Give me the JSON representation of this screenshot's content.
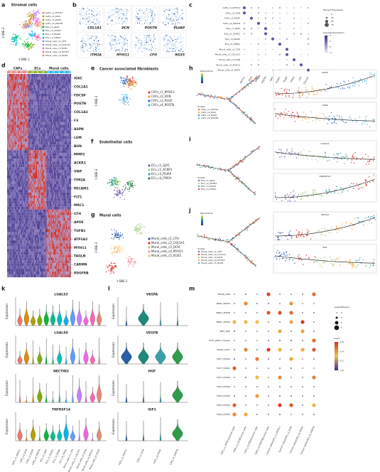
{
  "panels": {
    "a": {
      "letter": "a",
      "title": "Stromal cells",
      "x_label": "t-SNE-1",
      "y_label": "t-SNE-2",
      "legend": [
        "CAFs_c1_MYH11",
        "CAFs_c2_DCN",
        "CAFs_c3_RGS5",
        "CAFs_c4_POSTN",
        "ECs_c1_GJA5",
        "ECs_c2_ACKR1",
        "ECs_c3_PLVAP",
        "ECs_c4_ITM2A",
        "Mural_cells_c1_CFH",
        "Mural_cells_c2_COL1A1",
        "Mural_cells_c3_DCN",
        "Mural_cells_c4_MYH11",
        "Mural_cells_c5_RGS5"
      ],
      "colors": [
        "#f2766d",
        "#de8c00",
        "#b79f00",
        "#7cae00",
        "#00ba38",
        "#00c08b",
        "#00bfc4",
        "#00b4f0",
        "#619cff",
        "#c77cff",
        "#f564e3",
        "#ff64b0",
        "#e58a7a"
      ]
    },
    "b": {
      "letter": "b",
      "genes": [
        "COL1A1",
        "DCN",
        "POSTN",
        "PLVAP",
        "ITM2A",
        "MYH11",
        "CFH",
        "RGS5"
      ]
    },
    "c": {
      "letter": "c",
      "clusters": [
        "CAFs_c1_MYH11",
        "CAFs_c2_DCN",
        "CAFs_c3_RGS5",
        "CAFs_c4_POSTN",
        "ECs_c1_GJA5",
        "ECs_c2_ACKR1",
        "ECs_c3_PLVAP",
        "ECs_c4_ITM2A",
        "Mural_cells_c1_CFH",
        "Mural_cells_c2_COL1A1",
        "Mural_cells_c3_DCN",
        "Mural_cells_c4_MYH11",
        "Mural_cells_c5_RGS5"
      ],
      "genes": [
        "MYH11",
        "DCN",
        "RGS5",
        "POSTN",
        "GJA5",
        "ACKR1",
        "PLVAP",
        "ITM2A",
        "CFH",
        "COL1A1"
      ],
      "size_title": "Percent Expressed",
      "size_ticks": [
        0,
        25,
        50,
        75
      ],
      "color_title": "Average Expression",
      "color_ticks": [
        2,
        1,
        0,
        -1
      ]
    },
    "d": {
      "letter": "d",
      "groups": [
        "CAFs",
        "ECs",
        "Mural cells"
      ],
      "genes": [
        "IGKC",
        "COL1A1",
        "FDCSP",
        "POSTN",
        "COL1A2",
        "F3",
        "ASPN",
        "LUM",
        "BGN",
        "MMP2",
        "ACKR1",
        "VWF",
        "ITM2A",
        "PECAM1",
        "FLT1",
        "MRC1",
        "CFH",
        "APOE",
        "TGFB1",
        "ATP1A2",
        "MYH11",
        "TAGLN",
        "CARMN",
        "PDGFRB"
      ]
    },
    "e": {
      "letter": "e",
      "title": "Cancer associated fibroblasts",
      "y_label": "t-SNE-2",
      "legend": [
        "CAFs_c1_MYH11",
        "CAFs_c2_DCN",
        "CAFs_c3_RGS5",
        "CAFs_c4_POSTN"
      ],
      "colors": [
        "#e8453c",
        "#f0a030",
        "#3a78c2",
        "#4fb3d9"
      ]
    },
    "f": {
      "letter": "f",
      "title": "Endothelial cells",
      "y_label": "t-SNE-2",
      "legend": [
        "ECs_c1_GJA5",
        "ECs_c2_ACKR1",
        "ECs_c3_PLVAP",
        "ECs_c4_ITM2A"
      ],
      "colors": [
        "#7b5ea7",
        "#9fd27a",
        "#3aa0a8",
        "#2e7d4f"
      ]
    },
    "g": {
      "letter": "g",
      "title": "Mural cells",
      "x_label": "t-SNE-1",
      "y_label": "t-SNE-2",
      "legend": [
        "Mural_cells_c1_CFH",
        "Mural_cells_c2_COL1A1",
        "Mural_cells_c3_DCN",
        "Mural_cells_c4_MYH11",
        "Mural_cells_c5_RGS5"
      ],
      "colors": [
        "#2a5da8",
        "#d9362b",
        "#a5d27a",
        "#f0a0a8",
        "#f2c060"
      ]
    },
    "h": {
      "letter": "h",
      "pseudotime_title": "Pseudotime",
      "legend_title": "Cluster",
      "legend": [
        "CAFs_c1_MYH11",
        "CAFs_c2_DCN",
        "CAFs_c3_RGS5",
        "CAFs_c4_POSTN"
      ],
      "genes": [
        "APOD",
        "ASPN"
      ],
      "colors": [
        "#e8453c",
        "#f0a030",
        "#3a78c2",
        "#4fb3d9"
      ]
    },
    "i": {
      "letter": "i",
      "legend_title": "Cluster",
      "legend": [
        "ECs_c1_GJA5",
        "ECs_c2_ACKR1",
        "ECs_c3_PLVAP",
        "ECs_c4_ITM2A"
      ],
      "genes": [
        "COL4A1",
        "DNASE1L3"
      ],
      "colors": [
        "#7b5ea7",
        "#9fd27a",
        "#3aa0a8",
        "#d9362b"
      ]
    },
    "j": {
      "letter": "j",
      "pseudotime_title": "Pseudotime",
      "legend_title": "Cluster",
      "legend": [
        "Mural_cells_c1_CFH",
        "Mural_cells_c2_COL1A1",
        "Mural_cells_c3_DCN",
        "Mural_cells_c4_MYH11",
        "Mural_cells_c5_RGS5"
      ],
      "genes": [
        "ATP1A2",
        "PN1"
      ],
      "colors": [
        "#2a5da8",
        "#d9362b",
        "#a5d27a",
        "#f0a030",
        "#3aa0a8"
      ]
    },
    "k": {
      "letter": "k",
      "y_label": "Expression",
      "genes": [
        "LGALS3",
        "LGALS9",
        "NECTIN2",
        "TNFRSF14"
      ],
      "categories": [
        "CAFs_c1_MYH11",
        "CAFs_c2_DCN",
        "CAFs_c3_RGS5",
        "CAFs_c4_POSTN",
        "ECs_c1_GJA5",
        "ECs_c2_ACKR1",
        "ECs_c3_PLVAP",
        "ECs_c4_ITM2A",
        "Mural_cells_c1_CFH",
        "Mural_cells_c2_COL1A1",
        "Mural_cells_c3_DCN",
        "Mural_cells_c4_MYH11",
        "Mural_cells_c5_RGS5"
      ]
    },
    "l": {
      "letter": "l",
      "y_label": "Expression",
      "genes": [
        "VEGFA",
        "VEGFB",
        "HGF",
        "IGF1"
      ],
      "categories": [
        "CAFs_c1_MYH11",
        "CAFs_c2_DCN",
        "CAFs_c3_RGS5",
        "CAFs_c4_POSTN"
      ]
    },
    "m": {
      "letter": "m",
      "rows": [
        "VEGFA_KDR",
        "NRP2_VEGFA",
        "NRP1_VEGFB",
        "NRP1_VEGFA",
        "MET_HGF",
        "IGF1_a6b4 complex",
        "FGFR1_FGF7",
        "FGF7_FGFR4",
        "FGF7_FGFR3",
        "FGF7_FGFR2",
        "FGF2_FGFR4",
        "FGF2_FGFR3",
        "FGF2_FGFR2",
        "FGF2_FGFR1"
      ],
      "columns": [
        "CAFs_c1_MYH11|Cancer cells",
        "CAFs_c2_DCN|Cancer cells",
        "CAFs_c3_RGS5|Cancer cells",
        "CAFs_c4_POSTN|Cancer cells",
        "Cancer cells|CAFs_c1_MYH11",
        "Cancer cells|CAFs_c2_DCN",
        "Cancer cells|CAFs_c3_RGS5",
        "Cancer cells|CAFs_c4_POSTN"
      ],
      "size_title": "-log10(Pvalue)",
      "size_ticks": [
        0,
        1,
        2,
        3
      ],
      "color_title": "mean",
      "color_ticks": [
        0.6,
        0.4,
        0.2,
        {
          "value": 0,
          "label": "0.0"
        }
      ]
    }
  }
}
